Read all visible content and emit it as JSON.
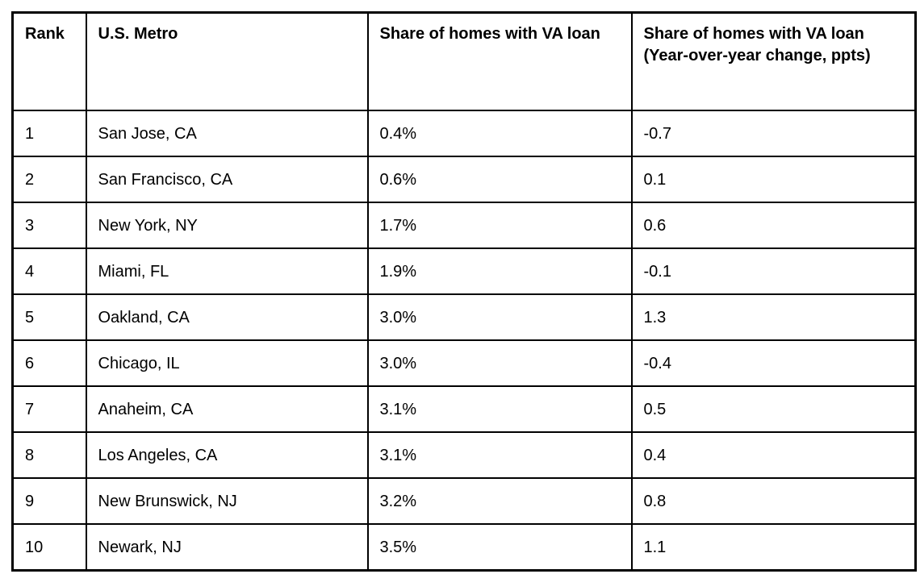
{
  "colors": {
    "background": "#ffffff",
    "border": "#000000",
    "text": "#000000"
  },
  "table": {
    "columns": [
      {
        "key": "rank",
        "label": "Rank"
      },
      {
        "key": "metro",
        "label": "U.S. Metro"
      },
      {
        "key": "share",
        "label": "Share of homes with VA loan"
      },
      {
        "key": "yoy",
        "label": "Share of homes with VA loan (Year-over-year change, ppts)"
      }
    ],
    "rows": [
      {
        "rank": "1",
        "metro": "San Jose, CA",
        "share": "0.4%",
        "yoy": "-0.7"
      },
      {
        "rank": "2",
        "metro": "San Francisco, CA",
        "share": "0.6%",
        "yoy": "0.1"
      },
      {
        "rank": "3",
        "metro": "New York, NY",
        "share": "1.7%",
        "yoy": "0.6"
      },
      {
        "rank": "4",
        "metro": "Miami, FL",
        "share": "1.9%",
        "yoy": "-0.1"
      },
      {
        "rank": "5",
        "metro": "Oakland, CA",
        "share": "3.0%",
        "yoy": "1.3"
      },
      {
        "rank": "6",
        "metro": "Chicago, IL",
        "share": "3.0%",
        "yoy": "-0.4"
      },
      {
        "rank": "7",
        "metro": "Anaheim, CA",
        "share": "3.1%",
        "yoy": "0.5"
      },
      {
        "rank": "8",
        "metro": "Los Angeles, CA",
        "share": "3.1%",
        "yoy": "0.4"
      },
      {
        "rank": "9",
        "metro": "New Brunswick, NJ",
        "share": "3.2%",
        "yoy": "0.8"
      },
      {
        "rank": "10",
        "metro": "Newark, NJ",
        "share": "3.5%",
        "yoy": "1.1"
      }
    ]
  },
  "chart_data": {
    "type": "table",
    "title": "",
    "columns": [
      "Rank",
      "U.S. Metro",
      "Share of homes with VA loan",
      "Share of homes with VA loan (Year-over-year change, ppts)"
    ],
    "rows": [
      [
        1,
        "San Jose, CA",
        0.4,
        -0.7
      ],
      [
        2,
        "San Francisco, CA",
        0.6,
        0.1
      ],
      [
        3,
        "New York, NY",
        1.7,
        0.6
      ],
      [
        4,
        "Miami, FL",
        1.9,
        -0.1
      ],
      [
        5,
        "Oakland, CA",
        3.0,
        1.3
      ],
      [
        6,
        "Chicago, IL",
        3.0,
        -0.4
      ],
      [
        7,
        "Anaheim, CA",
        3.1,
        0.5
      ],
      [
        8,
        "Los Angeles, CA",
        3.1,
        0.4
      ],
      [
        9,
        "New Brunswick, NJ",
        3.2,
        0.8
      ],
      [
        10,
        "Newark, NJ",
        3.5,
        1.1
      ]
    ],
    "units": {
      "share": "percent",
      "yoy": "percentage points"
    },
    "layout": {
      "grid": true,
      "header_row": true
    }
  }
}
